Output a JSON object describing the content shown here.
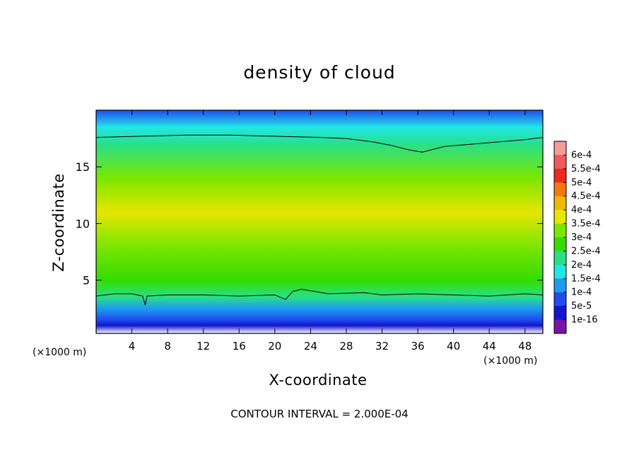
{
  "chart_data": {
    "type": "heatmap",
    "title": "density of cloud",
    "xlabel": "X-coordinate",
    "ylabel": "Z-coordinate",
    "x_unit": "(×1000 m)",
    "xlim": [
      0,
      50
    ],
    "ylim": [
      0.3,
      20
    ],
    "x_ticks": [
      4,
      8,
      12,
      16,
      20,
      24,
      28,
      32,
      36,
      40,
      44,
      48
    ],
    "y_ticks": [
      5,
      10,
      15
    ],
    "contour_note": "CONTOUR INTERVAL = 2.000E-04",
    "colorbar": {
      "labels": [
        "6e-4",
        "5.5e-4",
        "5e-4",
        "4.5e-4",
        "4e-4",
        "3.5e-4",
        "3e-4",
        "2.5e-4",
        "2e-4",
        "1.5e-4",
        "1e-4",
        "5e-5",
        "1e-16"
      ],
      "colors": [
        "#f59a9a",
        "#f05a5a",
        "#ee2a1e",
        "#f07a10",
        "#f0b800",
        "#e6e600",
        "#7ce600",
        "#34dc00",
        "#28e088",
        "#22e6e6",
        "#1e9cf0",
        "#1e4cf0",
        "#1414cc",
        "#7a14a8"
      ]
    },
    "field_profile": [
      {
        "z": 0.3,
        "value": 0
      },
      {
        "z": 1.0,
        "value": 1e-06
      },
      {
        "z": 1.5,
        "value": 5e-05
      },
      {
        "z": 2.5,
        "value": 0.0001
      },
      {
        "z": 3.5,
        "value": 0.0002
      },
      {
        "z": 5.0,
        "value": 0.00026
      },
      {
        "z": 8.0,
        "value": 0.00031
      },
      {
        "z": 11.0,
        "value": 0.00033
      },
      {
        "z": 14.0,
        "value": 0.00029
      },
      {
        "z": 17.0,
        "value": 0.00022
      },
      {
        "z": 18.5,
        "value": 0.00017
      },
      {
        "z": 20.0,
        "value": 9e-05
      }
    ],
    "contours": [
      {
        "level": 0.0002,
        "points": [
          [
            0,
            17.6
          ],
          [
            5,
            17.7
          ],
          [
            10,
            17.8
          ],
          [
            15,
            17.8
          ],
          [
            20,
            17.7
          ],
          [
            25,
            17.6
          ],
          [
            28,
            17.5
          ],
          [
            31,
            17.2
          ],
          [
            33,
            16.9
          ],
          [
            35,
            16.5
          ],
          [
            36.5,
            16.3
          ],
          [
            37.5,
            16.5
          ],
          [
            39,
            16.8
          ],
          [
            42,
            17.0
          ],
          [
            45,
            17.2
          ],
          [
            48,
            17.4
          ],
          [
            50,
            17.6
          ]
        ]
      },
      {
        "level": 0.0002,
        "points": [
          [
            0,
            3.6
          ],
          [
            2,
            3.8
          ],
          [
            4,
            3.8
          ],
          [
            5.2,
            3.6
          ],
          [
            5.5,
            2.8
          ],
          [
            5.7,
            3.6
          ],
          [
            8,
            3.7
          ],
          [
            12,
            3.7
          ],
          [
            16,
            3.6
          ],
          [
            20,
            3.7
          ],
          [
            21.2,
            3.3
          ],
          [
            22,
            4.0
          ],
          [
            23,
            4.2
          ],
          [
            26,
            3.8
          ],
          [
            30,
            3.9
          ],
          [
            32,
            3.7
          ],
          [
            36,
            3.8
          ],
          [
            40,
            3.7
          ],
          [
            44,
            3.6
          ],
          [
            48,
            3.8
          ],
          [
            50,
            3.7
          ]
        ]
      }
    ]
  }
}
